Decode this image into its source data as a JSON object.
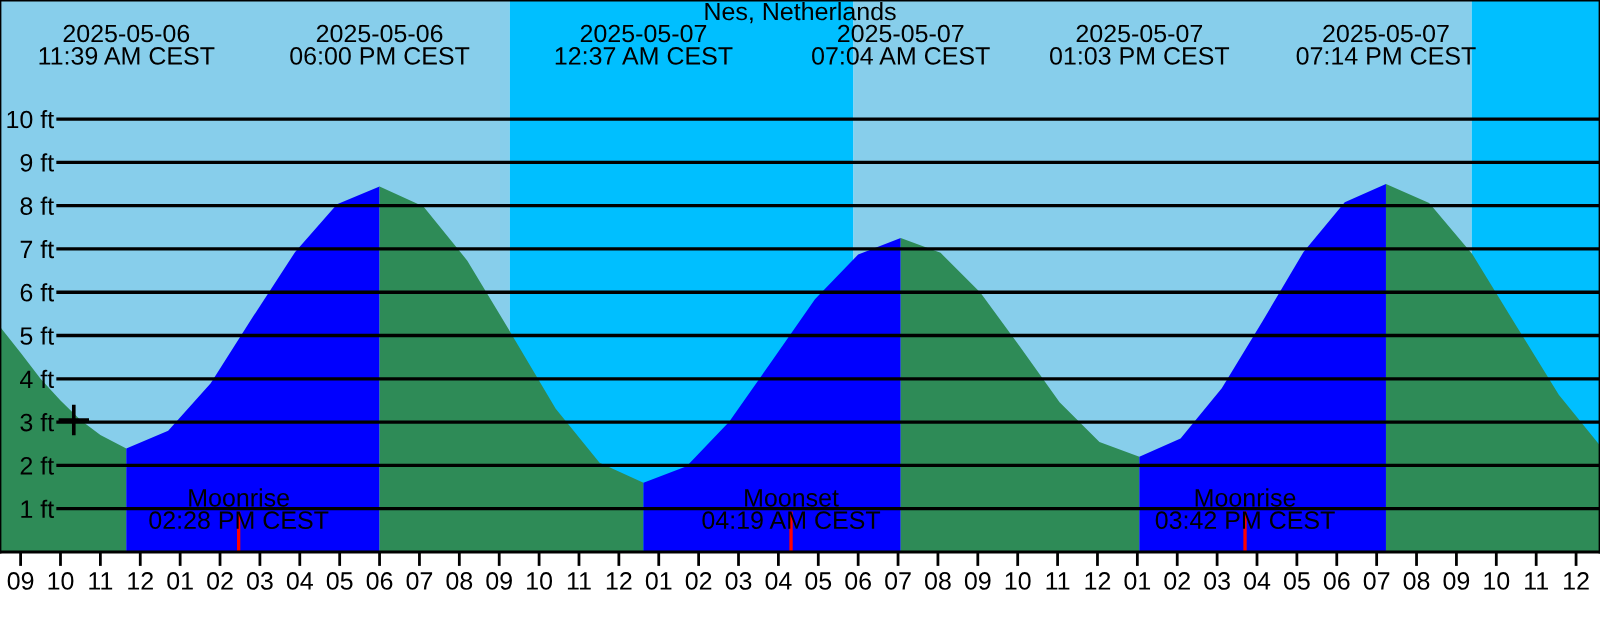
{
  "chart_data": {
    "type": "area",
    "title": "Nes, Netherlands",
    "xlim": [
      "2025-05-06T08:29",
      "2025-05-08T00:36"
    ],
    "ylim": [
      0,
      12.75
    ],
    "xticks": [
      {
        "value": "2025-05-06T09:00",
        "label": "09"
      },
      {
        "value": "2025-05-06T10:00",
        "label": "10"
      },
      {
        "value": "2025-05-06T11:00",
        "label": "11"
      },
      {
        "value": "2025-05-06T12:00",
        "label": "12"
      },
      {
        "value": "2025-05-06T13:00",
        "label": "01"
      },
      {
        "value": "2025-05-06T14:00",
        "label": "02"
      },
      {
        "value": "2025-05-06T15:00",
        "label": "03"
      },
      {
        "value": "2025-05-06T16:00",
        "label": "04"
      },
      {
        "value": "2025-05-06T17:00",
        "label": "05"
      },
      {
        "value": "2025-05-06T18:00",
        "label": "06"
      },
      {
        "value": "2025-05-06T19:00",
        "label": "07"
      },
      {
        "value": "2025-05-06T20:00",
        "label": "08"
      },
      {
        "value": "2025-05-06T21:00",
        "label": "09"
      },
      {
        "value": "2025-05-06T22:00",
        "label": "10"
      },
      {
        "value": "2025-05-06T23:00",
        "label": "11"
      },
      {
        "value": "2025-05-07T00:00",
        "label": "12"
      },
      {
        "value": "2025-05-07T01:00",
        "label": "01"
      },
      {
        "value": "2025-05-07T02:00",
        "label": "02"
      },
      {
        "value": "2025-05-07T03:00",
        "label": "03"
      },
      {
        "value": "2025-05-07T04:00",
        "label": "04"
      },
      {
        "value": "2025-05-07T05:00",
        "label": "05"
      },
      {
        "value": "2025-05-07T06:00",
        "label": "06"
      },
      {
        "value": "2025-05-07T07:00",
        "label": "07"
      },
      {
        "value": "2025-05-07T08:00",
        "label": "08"
      },
      {
        "value": "2025-05-07T09:00",
        "label": "09"
      },
      {
        "value": "2025-05-07T10:00",
        "label": "10"
      },
      {
        "value": "2025-05-07T11:00",
        "label": "11"
      },
      {
        "value": "2025-05-07T12:00",
        "label": "12"
      },
      {
        "value": "2025-05-07T13:00",
        "label": "01"
      },
      {
        "value": "2025-05-07T14:00",
        "label": "02"
      },
      {
        "value": "2025-05-07T15:00",
        "label": "03"
      },
      {
        "value": "2025-05-07T16:00",
        "label": "04"
      },
      {
        "value": "2025-05-07T17:00",
        "label": "05"
      },
      {
        "value": "2025-05-07T18:00",
        "label": "06"
      },
      {
        "value": "2025-05-07T19:00",
        "label": "07"
      },
      {
        "value": "2025-05-07T20:00",
        "label": "08"
      },
      {
        "value": "2025-05-07T21:00",
        "label": "09"
      },
      {
        "value": "2025-05-07T22:00",
        "label": "10"
      },
      {
        "value": "2025-05-07T23:00",
        "label": "11"
      },
      {
        "value": "2025-05-08T00:00",
        "label": "12"
      }
    ],
    "yticks": [
      {
        "value": 1,
        "label": "1 ft"
      },
      {
        "value": 2,
        "label": "2 ft"
      },
      {
        "value": 3,
        "label": "3 ft"
      },
      {
        "value": 4,
        "label": "4 ft"
      },
      {
        "value": 5,
        "label": "5 ft"
      },
      {
        "value": 6,
        "label": "6 ft"
      },
      {
        "value": 7,
        "label": "7 ft"
      },
      {
        "value": 8,
        "label": "8 ft"
      },
      {
        "value": 9,
        "label": "9 ft"
      },
      {
        "value": 10,
        "label": "10 ft"
      }
    ],
    "grid": "y",
    "bands": [
      {
        "axis": "x",
        "from": "2025-05-06T08:29",
        "to": "2025-05-06T21:16",
        "color": "#87ceeb"
      },
      {
        "axis": "x",
        "from": "2025-05-06T21:16",
        "to": "2025-05-07T05:53",
        "color": "#00bfff"
      },
      {
        "axis": "x",
        "from": "2025-05-07T05:53",
        "to": "2025-05-07T21:23",
        "color": "#87ceeb"
      },
      {
        "axis": "x",
        "from": "2025-05-07T21:23",
        "to": "2025-05-08T00:36",
        "color": "#00bfff"
      }
    ],
    "series": [
      {
        "color": "#2e8b57",
        "x": [
          "2025-05-06T08:29",
          "2025-05-06T09:00",
          "2025-05-06T09:30",
          "2025-05-06T10:00",
          "2025-05-06T10:30",
          "2025-05-06T11:00",
          "2025-05-06T11:39"
        ],
        "values": [
          5.2,
          4.6,
          4.0,
          3.5,
          3.05,
          2.7,
          2.39
        ]
      },
      {
        "color": "#0000ff",
        "x": [
          "2025-05-06T11:39",
          "2025-05-06T12:42",
          "2025-05-06T13:46",
          "2025-05-06T14:49",
          "2025-05-06T15:53",
          "2025-05-06T16:56",
          "2025-05-06T18:00"
        ],
        "values": [
          2.39,
          2.8,
          3.9,
          5.42,
          6.93,
          8.03,
          8.44
        ]
      },
      {
        "color": "#2e8b57",
        "x": [
          "2025-05-06T18:00",
          "2025-05-06T19:06",
          "2025-05-06T20:12",
          "2025-05-06T21:19",
          "2025-05-06T22:25",
          "2025-05-06T23:31",
          "2025-05-07T00:37"
        ],
        "values": [
          8.44,
          7.98,
          6.73,
          5.02,
          3.31,
          2.06,
          1.6
        ]
      },
      {
        "color": "#0000ff",
        "x": [
          "2025-05-07T00:37",
          "2025-05-07T01:42",
          "2025-05-07T02:46",
          "2025-05-07T03:51",
          "2025-05-07T04:55",
          "2025-05-07T06:00",
          "2025-05-07T07:04"
        ],
        "values": [
          1.6,
          1.98,
          3.01,
          4.43,
          5.84,
          6.87,
          7.25
        ]
      },
      {
        "color": "#2e8b57",
        "x": [
          "2025-05-07T07:04",
          "2025-05-07T08:04",
          "2025-05-07T09:04",
          "2025-05-07T10:04",
          "2025-05-07T11:03",
          "2025-05-07T12:03",
          "2025-05-07T13:03"
        ],
        "values": [
          7.25,
          6.91,
          5.99,
          4.73,
          3.46,
          2.54,
          2.2
        ]
      },
      {
        "color": "#0000ff",
        "x": [
          "2025-05-07T13:03",
          "2025-05-07T14:05",
          "2025-05-07T15:07",
          "2025-05-07T16:09",
          "2025-05-07T17:10",
          "2025-05-07T18:12",
          "2025-05-07T19:14"
        ],
        "values": [
          2.2,
          2.62,
          3.78,
          5.35,
          6.93,
          8.08,
          8.5
        ]
      },
      {
        "color": "#2e8b57",
        "x": [
          "2025-05-07T19:14",
          "2025-05-07T20:19",
          "2025-05-07T21:24",
          "2025-05-07T22:29",
          "2025-05-07T23:34",
          "2025-05-08T00:36"
        ],
        "values": [
          8.5,
          8.06,
          6.88,
          5.25,
          3.63,
          2.46
        ]
      },
      {
        "type": "scatter",
        "marker": "cross",
        "color": "#000000",
        "x": [
          "2025-05-06T10:20"
        ],
        "values": [
          3.05
        ]
      }
    ],
    "annotations": [
      "2025-05-06\n11:39 AM CEST",
      "2025-05-06\n06:00 PM CEST",
      "2025-05-07\n12:37 AM CEST",
      "2025-05-07\n07:04 AM CEST",
      "2025-05-07\n01:03 PM CEST",
      "2025-05-07\n07:14 PM CEST"
    ],
    "ref_lines": [
      {
        "axis": "x",
        "value": "2025-05-06T14:28",
        "label": "Moonrise\n02:28 PM CEST",
        "color": "#ff0000"
      },
      {
        "axis": "x",
        "value": "2025-05-07T04:19",
        "label": "Moonset\n04:19 AM CEST",
        "color": "#ff0000"
      },
      {
        "axis": "x",
        "value": "2025-05-07T15:42",
        "label": "Moonrise\n03:42 PM CEST",
        "color": "#ff0000"
      }
    ]
  }
}
